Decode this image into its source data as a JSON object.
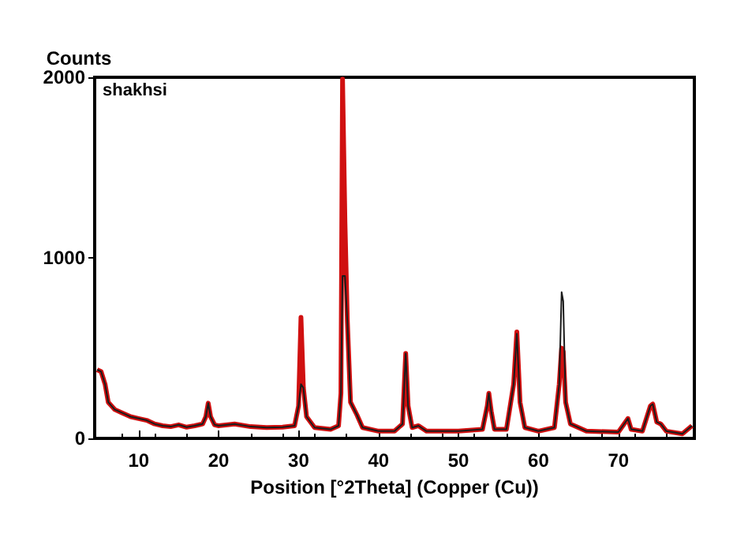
{
  "chart_data": {
    "type": "line",
    "xlabel": "Position [°2Theta] (Copper (Cu))",
    "ylabel": "Counts",
    "annotations": [
      "shakhsi"
    ],
    "x": [
      4.8,
      5.3,
      5.8,
      6.2,
      7,
      8,
      9,
      10,
      11,
      12,
      13,
      14,
      15,
      16,
      17,
      18,
      18.4,
      18.7,
      19,
      19.5,
      20,
      22,
      24,
      26,
      28,
      29.5,
      30,
      30.3,
      30.6,
      31,
      32,
      34,
      35,
      35.3,
      35.5,
      35.8,
      36.1,
      36.5,
      37.3,
      38,
      40,
      42,
      43,
      43.4,
      43.7,
      44.2,
      45,
      46,
      50,
      53,
      53.6,
      53.8,
      54.1,
      54.5,
      56,
      56.9,
      57.3,
      57.7,
      58.3,
      60,
      62,
      62.6,
      62.9,
      63.1,
      63.4,
      64,
      66,
      70,
      71.2,
      71.6,
      73,
      74,
      74.3,
      74.8,
      75.3,
      76,
      78,
      79.2
    ],
    "series": [
      {
        "color": "#d01010",
        "values": [
          380,
          370,
          300,
          200,
          160,
          140,
          120,
          110,
          100,
          80,
          70,
          65,
          75,
          62,
          70,
          80,
          120,
          195,
          120,
          75,
          70,
          80,
          65,
          60,
          62,
          70,
          180,
          670,
          280,
          120,
          60,
          50,
          70,
          250,
          1990,
          1200,
          650,
          200,
          130,
          60,
          40,
          40,
          80,
          470,
          180,
          60,
          70,
          40,
          40,
          50,
          180,
          250,
          150,
          50,
          50,
          300,
          590,
          200,
          60,
          40,
          60,
          300,
          500,
          480,
          200,
          80,
          40,
          35,
          110,
          50,
          40,
          180,
          190,
          90,
          80,
          40,
          25,
          70
        ]
      },
      {
        "color": "#1a1a1a",
        "values": [
          380,
          370,
          300,
          200,
          160,
          140,
          120,
          110,
          100,
          80,
          70,
          65,
          75,
          62,
          70,
          80,
          120,
          195,
          120,
          75,
          70,
          80,
          65,
          60,
          62,
          70,
          180,
          300,
          280,
          120,
          60,
          50,
          70,
          250,
          900,
          900,
          650,
          200,
          130,
          60,
          40,
          40,
          80,
          470,
          180,
          60,
          70,
          40,
          40,
          50,
          180,
          250,
          150,
          50,
          50,
          300,
          580,
          200,
          60,
          40,
          60,
          300,
          810,
          760,
          200,
          80,
          40,
          35,
          110,
          50,
          40,
          180,
          190,
          90,
          80,
          40,
          25,
          70
        ]
      }
    ],
    "xlim": [
      4.5,
      79.5
    ],
    "ylim": [
      0,
      2000
    ],
    "xticks": [
      10,
      20,
      30,
      40,
      50,
      60,
      70
    ],
    "yticks": [
      0,
      1000,
      2000
    ],
    "grid": false,
    "marker": "none",
    "line_style": "solid"
  }
}
